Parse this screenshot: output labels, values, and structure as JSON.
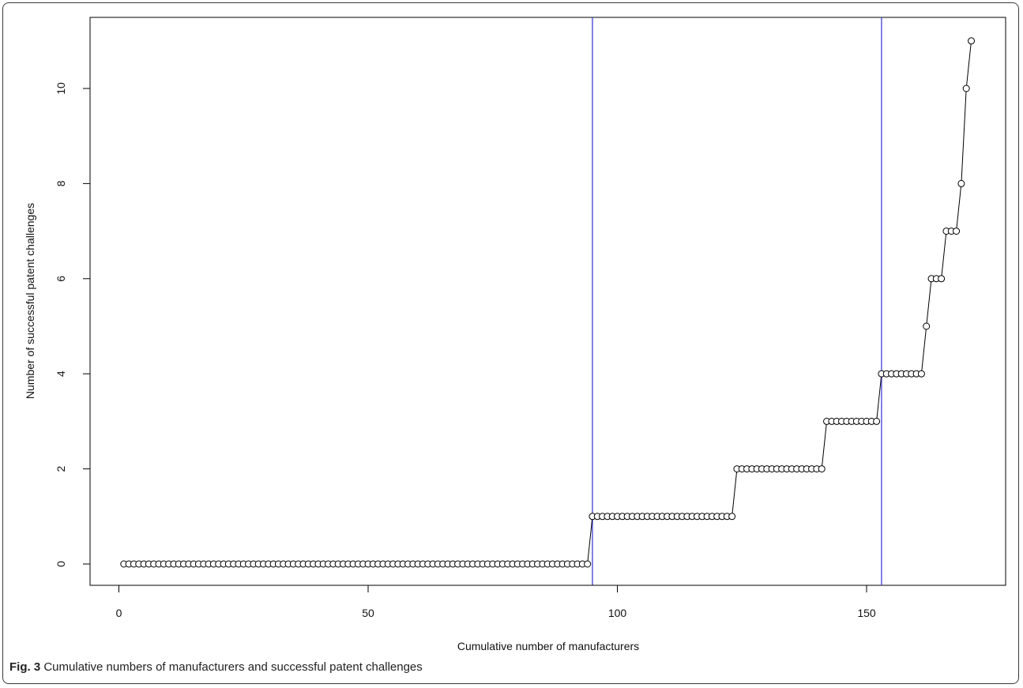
{
  "figure": {
    "label": "Fig. 3",
    "caption": "Cumulative numbers of manufacturers and successful patent challenges"
  },
  "chart_data": {
    "type": "line",
    "title": "",
    "xlabel": "Cumulative number of manufacturers",
    "ylabel": "Number of successful patent challenges",
    "xlim": [
      1,
      171
    ],
    "ylim": [
      0,
      11
    ],
    "xticks": [
      0,
      50,
      100,
      150
    ],
    "yticks": [
      0,
      2,
      4,
      6,
      8,
      10
    ],
    "grid": false,
    "marker": "open-circle",
    "line_color": "#000000",
    "vertical_lines": [
      {
        "x": 95,
        "color": "#3f3fd6"
      },
      {
        "x": 153,
        "color": "#3f3fd6"
      }
    ],
    "steps": [
      {
        "x_start": 1,
        "x_end": 94,
        "y": 0
      },
      {
        "x_start": 95,
        "x_end": 123,
        "y": 1
      },
      {
        "x_start": 124,
        "x_end": 141,
        "y": 2
      },
      {
        "x_start": 142,
        "x_end": 152,
        "y": 3
      },
      {
        "x_start": 153,
        "x_end": 161,
        "y": 4
      },
      {
        "x_start": 162,
        "x_end": 162,
        "y": 5
      },
      {
        "x_start": 163,
        "x_end": 165,
        "y": 6
      },
      {
        "x_start": 166,
        "x_end": 168,
        "y": 7
      },
      {
        "x_start": 169,
        "x_end": 169,
        "y": 8
      },
      {
        "x_start": 170,
        "x_end": 170,
        "y": 10
      },
      {
        "x_start": 171,
        "x_end": 171,
        "y": 11
      }
    ]
  }
}
